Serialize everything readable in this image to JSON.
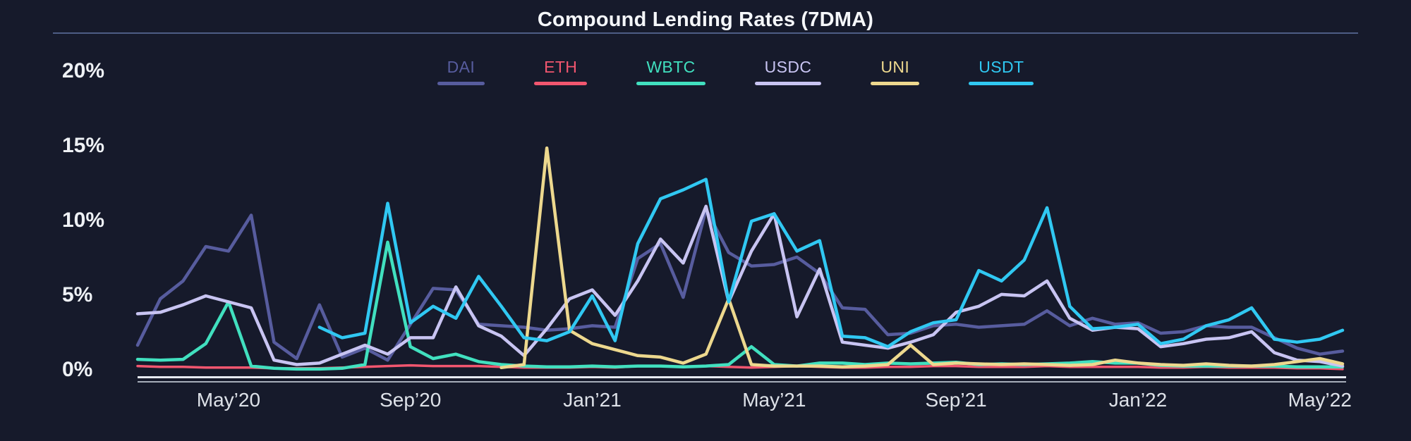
{
  "chart_data": {
    "type": "line",
    "title": "Compound Lending Rates (7DMA)",
    "ylim": [
      0,
      20
    ],
    "grid": false,
    "legend_position": "top",
    "y_ticks": [
      "20%",
      "15%",
      "10%",
      "5%",
      "0%"
    ],
    "y_tick_values": [
      20,
      15,
      10,
      5,
      0
    ],
    "x_ticks": [
      "May’20",
      "Sep’20",
      "Jan’21",
      "May’21",
      "Sep’21",
      "Jan’22",
      "May’22"
    ],
    "x_tick_indices": [
      4,
      12,
      20,
      28,
      36,
      44,
      52
    ],
    "x": [
      "2020-03-01",
      "2020-03-16",
      "2020-04-01",
      "2020-04-16",
      "2020-05-01",
      "2020-05-16",
      "2020-06-01",
      "2020-06-16",
      "2020-07-01",
      "2020-07-16",
      "2020-08-01",
      "2020-08-16",
      "2020-09-01",
      "2020-09-16",
      "2020-10-01",
      "2020-10-16",
      "2020-11-01",
      "2020-11-16",
      "2020-12-01",
      "2020-12-16",
      "2021-01-01",
      "2021-01-16",
      "2021-02-01",
      "2021-02-16",
      "2021-03-01",
      "2021-03-16",
      "2021-04-01",
      "2021-04-16",
      "2021-05-01",
      "2021-05-16",
      "2021-06-01",
      "2021-06-16",
      "2021-07-01",
      "2021-07-16",
      "2021-08-01",
      "2021-08-16",
      "2021-09-01",
      "2021-09-16",
      "2021-10-01",
      "2021-10-16",
      "2021-11-01",
      "2021-11-16",
      "2021-12-01",
      "2021-12-16",
      "2022-01-01",
      "2022-01-16",
      "2022-02-01",
      "2022-02-16",
      "2022-03-01",
      "2022-03-16",
      "2022-04-01",
      "2022-04-16",
      "2022-05-01",
      "2022-05-22"
    ],
    "unit": "percent",
    "series": [
      {
        "name": "DAI",
        "color": "#575c9e",
        "values": [
          1.7,
          4.8,
          6.0,
          8.3,
          8.0,
          10.4,
          1.9,
          0.8,
          4.4,
          0.9,
          1.5,
          0.7,
          3.1,
          5.5,
          5.4,
          3.1,
          3.0,
          2.9,
          2.7,
          2.8,
          3.0,
          2.9,
          7.5,
          8.5,
          4.9,
          10.8,
          7.9,
          7.0,
          7.1,
          7.6,
          6.5,
          4.2,
          4.1,
          2.4,
          2.5,
          3.0,
          3.1,
          2.9,
          3.0,
          3.1,
          4.0,
          3.0,
          3.5,
          3.1,
          3.2,
          2.5,
          2.6,
          3.0,
          2.9,
          2.9,
          2.2,
          1.5,
          1.1,
          1.3
        ]
      },
      {
        "name": "ETH",
        "color": "#f2566f",
        "values": [
          0.3,
          0.25,
          0.25,
          0.2,
          0.2,
          0.2,
          0.15,
          0.15,
          0.15,
          0.2,
          0.25,
          0.3,
          0.35,
          0.3,
          0.3,
          0.3,
          0.25,
          0.2,
          0.2,
          0.2,
          0.25,
          0.2,
          0.3,
          0.3,
          0.25,
          0.3,
          0.25,
          0.2,
          0.25,
          0.3,
          0.25,
          0.2,
          0.2,
          0.25,
          0.25,
          0.3,
          0.3,
          0.25,
          0.25,
          0.25,
          0.3,
          0.25,
          0.25,
          0.25,
          0.25,
          0.2,
          0.2,
          0.25,
          0.2,
          0.2,
          0.2,
          0.15,
          0.15,
          0.1
        ]
      },
      {
        "name": "WBTC",
        "color": "#41e0bf",
        "values": [
          0.75,
          0.7,
          0.75,
          1.8,
          4.6,
          0.3,
          0.15,
          0.1,
          0.1,
          0.15,
          0.4,
          8.6,
          1.6,
          0.8,
          1.1,
          0.6,
          0.4,
          0.3,
          0.25,
          0.25,
          0.3,
          0.25,
          0.3,
          0.3,
          0.25,
          0.3,
          0.4,
          1.6,
          0.4,
          0.3,
          0.5,
          0.5,
          0.4,
          0.5,
          0.45,
          0.5,
          0.55,
          0.4,
          0.45,
          0.4,
          0.45,
          0.5,
          0.6,
          0.5,
          0.5,
          0.35,
          0.3,
          0.3,
          0.3,
          0.3,
          0.3,
          0.25,
          0.25,
          0.25
        ]
      },
      {
        "name": "USDC",
        "color": "#c8c4f2",
        "values": [
          3.8,
          3.9,
          4.4,
          5.0,
          4.6,
          4.2,
          0.7,
          0.4,
          0.5,
          1.1,
          1.7,
          1.1,
          2.2,
          2.2,
          5.6,
          3.0,
          2.3,
          1.0,
          2.8,
          4.8,
          5.4,
          3.7,
          6.0,
          8.8,
          7.2,
          11.0,
          4.6,
          8.0,
          10.5,
          3.6,
          6.8,
          1.9,
          1.7,
          1.5,
          1.9,
          2.4,
          3.9,
          4.3,
          5.1,
          5.0,
          6.0,
          3.5,
          2.7,
          2.9,
          2.8,
          1.6,
          1.8,
          2.1,
          2.2,
          2.6,
          1.2,
          0.7,
          0.6,
          0.3
        ]
      },
      {
        "name": "UNI",
        "color": "#edd88e",
        "values": [
          null,
          null,
          null,
          null,
          null,
          null,
          null,
          null,
          null,
          null,
          null,
          null,
          null,
          null,
          null,
          null,
          0.2,
          0.4,
          14.9,
          2.7,
          1.8,
          1.4,
          1.0,
          0.9,
          0.5,
          1.1,
          4.8,
          0.4,
          0.3,
          0.3,
          0.3,
          0.25,
          0.3,
          0.4,
          1.7,
          0.4,
          0.5,
          0.45,
          0.4,
          0.45,
          0.4,
          0.35,
          0.4,
          0.7,
          0.5,
          0.4,
          0.35,
          0.45,
          0.35,
          0.3,
          0.4,
          0.6,
          0.8,
          0.45
        ]
      },
      {
        "name": "USDT",
        "color": "#30c8f2",
        "values": [
          null,
          null,
          null,
          null,
          null,
          null,
          null,
          null,
          2.9,
          2.2,
          2.5,
          11.2,
          3.2,
          4.3,
          3.5,
          6.3,
          4.3,
          2.2,
          2.0,
          2.6,
          5.0,
          2.0,
          8.5,
          11.5,
          12.1,
          12.8,
          4.6,
          10.0,
          10.5,
          8.0,
          8.7,
          2.3,
          2.2,
          1.6,
          2.6,
          3.2,
          3.4,
          6.7,
          6.0,
          7.4,
          10.9,
          4.3,
          2.8,
          2.9,
          3.1,
          1.8,
          2.1,
          3.0,
          3.4,
          4.2,
          2.1,
          1.9,
          2.1,
          2.7
        ]
      }
    ]
  },
  "colors": {
    "background": "#161a2b",
    "title_text": "#f5f7fa",
    "separator": "#4e5d85",
    "y_label_text": "#eef1f5",
    "x_label_text": "#dde1e8",
    "axis_line_top": "#e6e9f0",
    "axis_line_bottom": "#a7adba"
  }
}
